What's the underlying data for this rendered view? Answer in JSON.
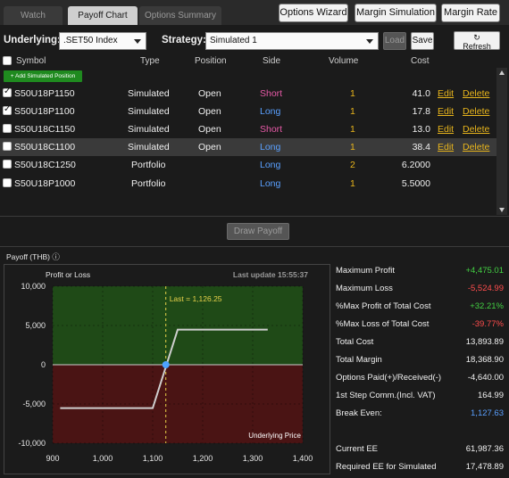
{
  "tabs": [
    {
      "label": "Watch",
      "active": false
    },
    {
      "label": "Payoff Chart",
      "active": true
    },
    {
      "label": "Options Summary",
      "active": false
    }
  ],
  "top_buttons": {
    "options_wizard": "Options Wizard",
    "margin_simulation": "Margin Simulation",
    "margin_rate": "Margin Rate"
  },
  "controls": {
    "underlying_label": "Underlying:",
    "underlying_value": ".SET50 Index",
    "strategy_label": "Strategy:",
    "strategy_value": "Simulated 1",
    "load_label": "Load",
    "save_label": "Save",
    "refresh_label": "Refresh"
  },
  "table": {
    "headers": {
      "symbol": "Symbol",
      "type": "Type",
      "position": "Position",
      "side": "Side",
      "volume": "Volume",
      "cost": "Cost"
    },
    "add_button": "+ Add Simulated Position",
    "rows": [
      {
        "checked": true,
        "symbol": "S50U18P1150",
        "type": "Simulated",
        "position": "Open",
        "side": "Short",
        "volume": "1",
        "cost": "41.0",
        "edit": "Edit",
        "delete": "Delete"
      },
      {
        "checked": true,
        "symbol": "S50U18P1100",
        "type": "Simulated",
        "position": "Open",
        "side": "Long",
        "volume": "1",
        "cost": "17.8",
        "edit": "Edit",
        "delete": "Delete"
      },
      {
        "checked": false,
        "symbol": "S50U18C1150",
        "type": "Simulated",
        "position": "Open",
        "side": "Short",
        "volume": "1",
        "cost": "13.0",
        "edit": "Edit",
        "delete": "Delete"
      },
      {
        "checked": false,
        "symbol": "S50U18C1100",
        "type": "Simulated",
        "position": "Open",
        "side": "Long",
        "volume": "1",
        "cost": "38.4",
        "edit": "Edit",
        "delete": "Delete"
      },
      {
        "checked": false,
        "symbol": "S50U18C1250",
        "type": "Portfolio",
        "position": "",
        "side": "Long",
        "volume": "2",
        "cost": "6.2000",
        "edit": "",
        "delete": ""
      },
      {
        "checked": false,
        "symbol": "S50U18P1000",
        "type": "Portfolio",
        "position": "",
        "side": "Long",
        "volume": "1",
        "cost": "5.5000",
        "edit": "",
        "delete": ""
      }
    ]
  },
  "draw_payoff_label": "Draw Payoff",
  "payoff_title": "Payoff (THB) ⓘ",
  "chart_data": {
    "type": "line",
    "ylabel": "Profit or Loss",
    "xlabel": "Underlying Price",
    "last_update": "Last update 15:55:37",
    "last_label": "Last = 1,126.25",
    "last_x": 1126.25,
    "xlim": [
      900,
      1400
    ],
    "ylim": [
      -10000,
      10000
    ],
    "xticks": [
      "900",
      "1,000",
      "1,100",
      "1,200",
      "1,300",
      "1,400"
    ],
    "yticks": [
      "10,000",
      "5,000",
      "0",
      "-5,000",
      "-10,000"
    ],
    "xtick_values": [
      900,
      1000,
      1100,
      1200,
      1300,
      1400
    ],
    "ytick_values": [
      10000,
      5000,
      0,
      -5000,
      -10000
    ],
    "x": [
      915,
      1100,
      1150,
      1330
    ],
    "y": [
      -5525,
      -5525,
      4475,
      4475
    ],
    "colors": {
      "profit_zone": "#1f4a17",
      "loss_zone": "#4a1414",
      "line": "#cfcfcf",
      "marker": "#4ca3ff",
      "last_line": "#e8d24a"
    }
  },
  "stats": [
    {
      "label": "Maximum Profit",
      "value": "+4,475.01",
      "tone": "green"
    },
    {
      "label": "Maximum Loss",
      "value": "-5,524.99",
      "tone": "red"
    },
    {
      "label": "%Max Profit of Total Cost",
      "value": "+32.21%",
      "tone": "green"
    },
    {
      "label": "%Max Loss of Total Cost",
      "value": "-39.77%",
      "tone": "red"
    },
    {
      "label": "Total Cost",
      "value": "13,893.89",
      "tone": ""
    },
    {
      "label": "Total Margin",
      "value": "18,368.90",
      "tone": ""
    },
    {
      "label": "Options Paid(+)/Received(-)",
      "value": "-4,640.00",
      "tone": ""
    },
    {
      "label": "1st Step Comm.(Incl. VAT)",
      "value": "164.99",
      "tone": ""
    },
    {
      "label": "Break Even:",
      "value": "1,127.63",
      "tone": "blue"
    },
    {
      "label": "Current EE",
      "value": "61,987.36",
      "tone": ""
    },
    {
      "label": "Required EE for Simulated",
      "value": "17,478.89",
      "tone": ""
    }
  ]
}
